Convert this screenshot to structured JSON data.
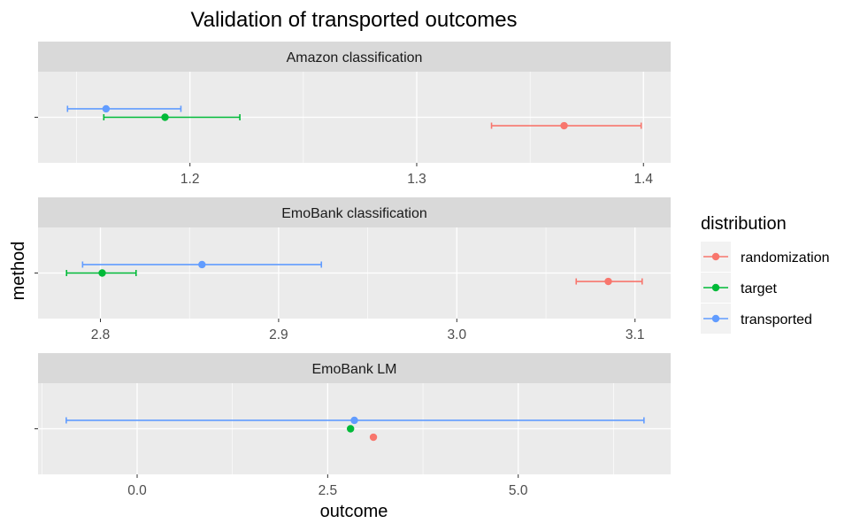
{
  "chart_data": {
    "type": "scatter",
    "title": "Validation of transported outcomes",
    "xlabel": "outcome",
    "ylabel": "method",
    "grid": true,
    "legend": {
      "title": "distribution",
      "placement": "right",
      "entries": [
        {
          "name": "randomization",
          "color": "#F8766D"
        },
        {
          "name": "target",
          "color": "#00BA38"
        },
        {
          "name": "transported",
          "color": "#619CFF"
        }
      ]
    },
    "panels": [
      {
        "strip": "Amazon classification",
        "xlim": [
          1.133,
          1.412
        ],
        "ticks": [
          1.2,
          1.3,
          1.4
        ],
        "tick_labels": [
          "1.2",
          "1.3",
          "1.4"
        ],
        "series": [
          {
            "name": "transported",
            "color": "#619CFF",
            "y": 0.2,
            "x": 1.163,
            "low": 1.146,
            "high": 1.196
          },
          {
            "name": "target",
            "color": "#00BA38",
            "y": 0,
            "x": 1.189,
            "low": 1.162,
            "high": 1.222
          },
          {
            "name": "randomization",
            "color": "#F8766D",
            "y": -0.2,
            "x": 1.365,
            "low": 1.333,
            "high": 1.399
          }
        ]
      },
      {
        "strip": "EmoBank classification",
        "xlim": [
          2.765,
          3.12
        ],
        "ticks": [
          2.8,
          2.9,
          3.0,
          3.1
        ],
        "tick_labels": [
          "2.8",
          "2.9",
          "3.0",
          "3.1"
        ],
        "series": [
          {
            "name": "transported",
            "color": "#619CFF",
            "y": 0.2,
            "x": 2.857,
            "low": 2.79,
            "high": 2.924
          },
          {
            "name": "target",
            "color": "#00BA38",
            "y": 0,
            "x": 2.801,
            "low": 2.781,
            "high": 2.82
          },
          {
            "name": "randomization",
            "color": "#F8766D",
            "y": -0.2,
            "x": 3.085,
            "low": 3.067,
            "high": 3.104
          }
        ]
      },
      {
        "strip": "EmoBank LM",
        "xlim": [
          -1.3,
          7.0
        ],
        "ticks": [
          0.0,
          2.5,
          5.0
        ],
        "tick_labels": [
          "0.0",
          "2.5",
          "5.0"
        ],
        "series": [
          {
            "name": "transported",
            "color": "#619CFF",
            "y": 0.2,
            "x": 2.85,
            "low": -0.93,
            "high": 6.65
          },
          {
            "name": "target",
            "color": "#00BA38",
            "y": 0,
            "x": 2.8,
            "low": null,
            "high": null
          },
          {
            "name": "randomization",
            "color": "#F8766D",
            "y": -0.2,
            "x": 3.1,
            "low": null,
            "high": null
          }
        ]
      }
    ]
  }
}
